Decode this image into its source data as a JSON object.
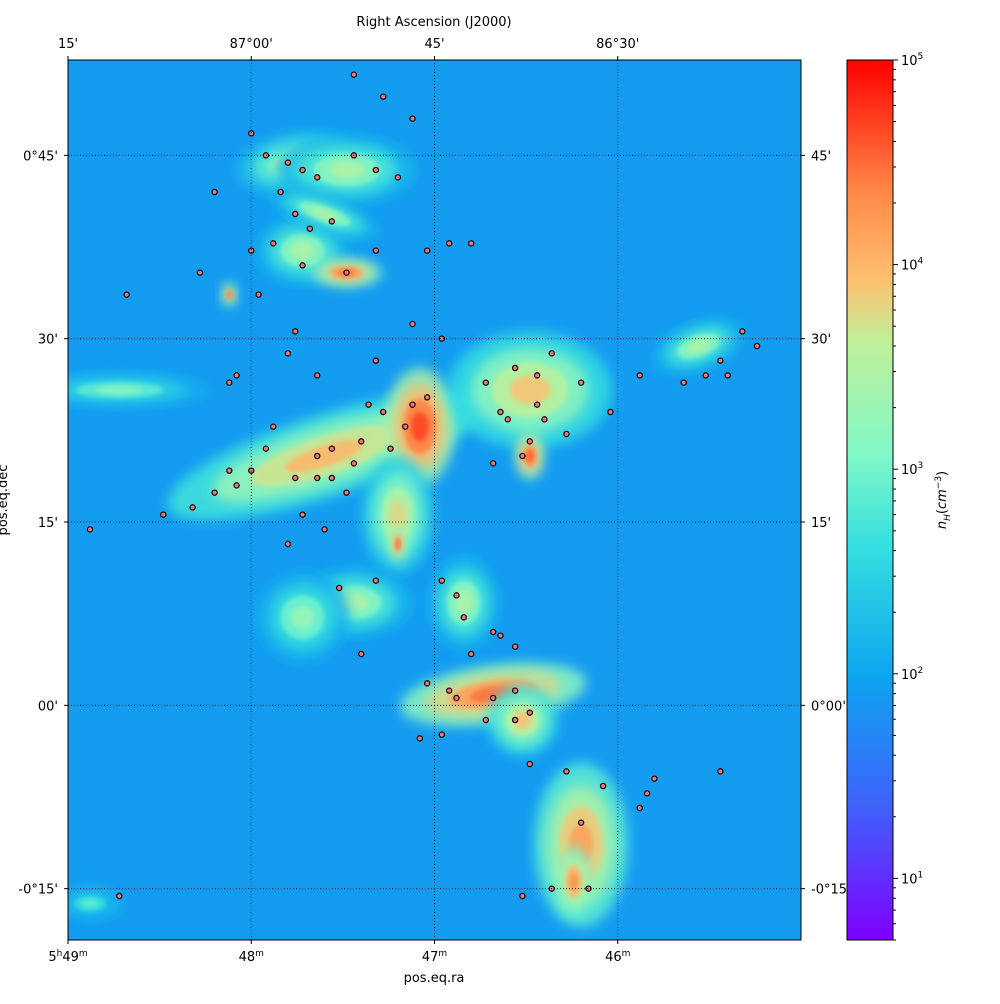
{
  "chart_data": {
    "type": "heatmap",
    "title": "",
    "top_axis_label": "Right Ascension (J2000)",
    "xlabel": "pos.eq.ra",
    "ylabel": "pos.eq.dec",
    "colormap": "rainbow",
    "colorbar": {
      "label": "n_H(cm^-3)",
      "scale": "log",
      "range": [
        5,
        100000
      ],
      "ticks": [
        {
          "value": 10,
          "label_base": "10",
          "label_exp": "1"
        },
        {
          "value": 100,
          "label_base": "10",
          "label_exp": "2"
        },
        {
          "value": 1000,
          "label_base": "10",
          "label_exp": "3"
        },
        {
          "value": 10000,
          "label_base": "10",
          "label_exp": "4"
        },
        {
          "value": 100000,
          "label_base": "10",
          "label_exp": "5"
        }
      ]
    },
    "top_ticks": [
      {
        "value": 87.25,
        "label": "15'"
      },
      {
        "value": 87.0,
        "label": "87°00'"
      },
      {
        "value": 86.75,
        "label": "45'"
      },
      {
        "value": 86.5,
        "label": "86°30'"
      }
    ],
    "bottom_ticks": [
      {
        "value": 87.25,
        "label_main": "5",
        "label_sup1": "h",
        "label_mid": "49",
        "label_sup2": "m"
      },
      {
        "value": 87.0,
        "label_main": "",
        "label_sup1": "",
        "label_mid": "48",
        "label_sup2": "m"
      },
      {
        "value": 86.75,
        "label_main": "",
        "label_sup1": "",
        "label_mid": "47",
        "label_sup2": "m"
      },
      {
        "value": 86.5,
        "label_main": "",
        "label_sup1": "",
        "label_mid": "46",
        "label_sup2": "m"
      }
    ],
    "left_ticks": [
      {
        "value": 0.75,
        "label": "0°45'"
      },
      {
        "value": 0.5,
        "label": "30'"
      },
      {
        "value": 0.25,
        "label": "15'"
      },
      {
        "value": 0.0,
        "label": "00'"
      },
      {
        "value": -0.25,
        "label": "-0°15'"
      }
    ],
    "right_ticks": [
      {
        "value": 0.75,
        "label": "45'"
      },
      {
        "value": 0.5,
        "label": "30'"
      },
      {
        "value": 0.25,
        "label": "15'"
      },
      {
        "value": 0.0,
        "label": "0°00'"
      },
      {
        "value": -0.25,
        "label": "-0°15'"
      }
    ],
    "ra_range": [
      87.25,
      86.25
    ],
    "dec_range": [
      -0.32,
      0.88
    ],
    "grid": "dotted",
    "background_density": 80,
    "density_structures": [
      {
        "ra": 86.94,
        "dec": 0.74,
        "rx": 0.05,
        "ry": 0.025,
        "peak": 4000,
        "angle": -10
      },
      {
        "ra": 86.87,
        "dec": 0.73,
        "rx": 0.06,
        "ry": 0.03,
        "peak": 3000,
        "angle": 0
      },
      {
        "ra": 86.93,
        "dec": 0.62,
        "rx": 0.04,
        "ry": 0.03,
        "peak": 3000,
        "angle": 0
      },
      {
        "ra": 86.87,
        "dec": 0.59,
        "rx": 0.03,
        "ry": 0.012,
        "peak": 30000,
        "angle": 0
      },
      {
        "ra": 86.9,
        "dec": 0.67,
        "rx": 0.05,
        "ry": 0.015,
        "peak": 3000,
        "angle": 20
      },
      {
        "ra": 87.03,
        "dec": 0.56,
        "rx": 0.006,
        "ry": 0.01,
        "peak": 30000,
        "angle": 0
      },
      {
        "ra": 86.9,
        "dec": 0.34,
        "rx": 0.14,
        "ry": 0.035,
        "peak": 10000,
        "angle": -18
      },
      {
        "ra": 86.77,
        "dec": 0.38,
        "rx": 0.03,
        "ry": 0.05,
        "peak": 50000,
        "angle": 0
      },
      {
        "ra": 86.62,
        "dec": 0.43,
        "rx": 0.07,
        "ry": 0.05,
        "peak": 8000,
        "angle": 0
      },
      {
        "ra": 86.62,
        "dec": 0.34,
        "rx": 0.012,
        "ry": 0.02,
        "peak": 40000,
        "angle": 0
      },
      {
        "ra": 86.8,
        "dec": 0.26,
        "rx": 0.03,
        "ry": 0.05,
        "peak": 6000,
        "angle": 0
      },
      {
        "ra": 86.86,
        "dec": 0.14,
        "rx": 0.05,
        "ry": 0.03,
        "peak": 3000,
        "angle": 0
      },
      {
        "ra": 86.93,
        "dec": 0.12,
        "rx": 0.04,
        "ry": 0.04,
        "peak": 2000,
        "angle": 0
      },
      {
        "ra": 86.71,
        "dec": 0.14,
        "rx": 0.03,
        "ry": 0.04,
        "peak": 3000,
        "angle": 0
      },
      {
        "ra": 86.67,
        "dec": 0.015,
        "rx": 0.08,
        "ry": 0.025,
        "peak": 30000,
        "angle": -8
      },
      {
        "ra": 86.63,
        "dec": -0.02,
        "rx": 0.03,
        "ry": 0.03,
        "peak": 8000,
        "angle": 0
      },
      {
        "ra": 86.55,
        "dec": -0.19,
        "rx": 0.04,
        "ry": 0.07,
        "peak": 15000,
        "angle": 0
      },
      {
        "ra": 86.56,
        "dec": -0.24,
        "rx": 0.015,
        "ry": 0.03,
        "peak": 20000,
        "angle": 0
      },
      {
        "ra": 86.39,
        "dec": 0.49,
        "rx": 0.04,
        "ry": 0.02,
        "peak": 3000,
        "angle": -20
      },
      {
        "ra": 87.18,
        "dec": 0.43,
        "rx": 0.08,
        "ry": 0.015,
        "peak": 1500,
        "angle": 0
      },
      {
        "ra": 87.22,
        "dec": -0.27,
        "rx": 0.03,
        "ry": 0.015,
        "peak": 800,
        "angle": 0
      },
      {
        "ra": 86.8,
        "dec": 0.22,
        "rx": 0.006,
        "ry": 0.015,
        "peak": 40000,
        "angle": 0
      }
    ],
    "sources": [
      {
        "ra": 86.86,
        "dec": 0.86
      },
      {
        "ra": 86.82,
        "dec": 0.83
      },
      {
        "ra": 86.78,
        "dec": 0.8
      },
      {
        "ra": 87.0,
        "dec": 0.78
      },
      {
        "ra": 86.98,
        "dec": 0.75
      },
      {
        "ra": 86.95,
        "dec": 0.74
      },
      {
        "ra": 86.93,
        "dec": 0.73
      },
      {
        "ra": 86.91,
        "dec": 0.72
      },
      {
        "ra": 86.86,
        "dec": 0.75
      },
      {
        "ra": 86.83,
        "dec": 0.73
      },
      {
        "ra": 86.8,
        "dec": 0.72
      },
      {
        "ra": 87.05,
        "dec": 0.7
      },
      {
        "ra": 86.96,
        "dec": 0.7
      },
      {
        "ra": 86.94,
        "dec": 0.67
      },
      {
        "ra": 86.92,
        "dec": 0.65
      },
      {
        "ra": 86.89,
        "dec": 0.66
      },
      {
        "ra": 86.97,
        "dec": 0.63
      },
      {
        "ra": 87.0,
        "dec": 0.62
      },
      {
        "ra": 86.93,
        "dec": 0.6
      },
      {
        "ra": 86.87,
        "dec": 0.59
      },
      {
        "ra": 86.83,
        "dec": 0.62
      },
      {
        "ra": 86.76,
        "dec": 0.62
      },
      {
        "ra": 86.73,
        "dec": 0.63
      },
      {
        "ra": 86.7,
        "dec": 0.63
      },
      {
        "ra": 87.07,
        "dec": 0.59
      },
      {
        "ra": 87.17,
        "dec": 0.56
      },
      {
        "ra": 86.99,
        "dec": 0.56
      },
      {
        "ra": 86.94,
        "dec": 0.51
      },
      {
        "ra": 86.78,
        "dec": 0.52
      },
      {
        "ra": 86.74,
        "dec": 0.5
      },
      {
        "ra": 86.83,
        "dec": 0.47
      },
      {
        "ra": 86.95,
        "dec": 0.48
      },
      {
        "ra": 86.91,
        "dec": 0.45
      },
      {
        "ra": 87.02,
        "dec": 0.45
      },
      {
        "ra": 87.03,
        "dec": 0.44
      },
      {
        "ra": 86.68,
        "dec": 0.44
      },
      {
        "ra": 86.64,
        "dec": 0.46
      },
      {
        "ra": 86.61,
        "dec": 0.45
      },
      {
        "ra": 86.59,
        "dec": 0.48
      },
      {
        "ra": 86.55,
        "dec": 0.44
      },
      {
        "ra": 86.61,
        "dec": 0.41
      },
      {
        "ra": 86.66,
        "dec": 0.4
      },
      {
        "ra": 86.65,
        "dec": 0.39
      },
      {
        "ra": 86.6,
        "dec": 0.39
      },
      {
        "ra": 86.57,
        "dec": 0.37
      },
      {
        "ra": 86.62,
        "dec": 0.36
      },
      {
        "ra": 86.63,
        "dec": 0.34
      },
      {
        "ra": 86.67,
        "dec": 0.33
      },
      {
        "ra": 86.51,
        "dec": 0.4
      },
      {
        "ra": 86.47,
        "dec": 0.45
      },
      {
        "ra": 86.41,
        "dec": 0.44
      },
      {
        "ra": 86.38,
        "dec": 0.45
      },
      {
        "ra": 86.35,
        "dec": 0.45
      },
      {
        "ra": 86.33,
        "dec": 0.51
      },
      {
        "ra": 86.31,
        "dec": 0.49
      },
      {
        "ra": 86.36,
        "dec": 0.47
      },
      {
        "ra": 86.76,
        "dec": 0.42
      },
      {
        "ra": 86.78,
        "dec": 0.41
      },
      {
        "ra": 86.82,
        "dec": 0.4
      },
      {
        "ra": 86.84,
        "dec": 0.41
      },
      {
        "ra": 86.79,
        "dec": 0.38
      },
      {
        "ra": 86.81,
        "dec": 0.35
      },
      {
        "ra": 86.85,
        "dec": 0.36
      },
      {
        "ra": 86.86,
        "dec": 0.33
      },
      {
        "ra": 86.89,
        "dec": 0.35
      },
      {
        "ra": 86.91,
        "dec": 0.34
      },
      {
        "ra": 86.97,
        "dec": 0.38
      },
      {
        "ra": 86.98,
        "dec": 0.35
      },
      {
        "ra": 87.0,
        "dec": 0.32
      },
      {
        "ra": 87.03,
        "dec": 0.32
      },
      {
        "ra": 87.05,
        "dec": 0.29
      },
      {
        "ra": 86.94,
        "dec": 0.31
      },
      {
        "ra": 86.91,
        "dec": 0.31
      },
      {
        "ra": 86.89,
        "dec": 0.31
      },
      {
        "ra": 86.87,
        "dec": 0.29
      },
      {
        "ra": 86.93,
        "dec": 0.26
      },
      {
        "ra": 86.95,
        "dec": 0.22
      },
      {
        "ra": 86.9,
        "dec": 0.24
      },
      {
        "ra": 86.88,
        "dec": 0.16
      },
      {
        "ra": 86.83,
        "dec": 0.17
      },
      {
        "ra": 86.74,
        "dec": 0.17
      },
      {
        "ra": 86.72,
        "dec": 0.15
      },
      {
        "ra": 86.71,
        "dec": 0.12
      },
      {
        "ra": 86.67,
        "dec": 0.1
      },
      {
        "ra": 86.66,
        "dec": 0.095
      },
      {
        "ra": 86.64,
        "dec": 0.08
      },
      {
        "ra": 86.7,
        "dec": 0.07
      },
      {
        "ra": 86.76,
        "dec": 0.03
      },
      {
        "ra": 86.73,
        "dec": 0.02
      },
      {
        "ra": 86.72,
        "dec": 0.01
      },
      {
        "ra": 86.67,
        "dec": 0.01
      },
      {
        "ra": 86.64,
        "dec": 0.02
      },
      {
        "ra": 86.62,
        "dec": -0.01
      },
      {
        "ra": 86.64,
        "dec": -0.02
      },
      {
        "ra": 86.68,
        "dec": -0.02
      },
      {
        "ra": 86.74,
        "dec": -0.04
      },
      {
        "ra": 86.77,
        "dec": -0.045
      },
      {
        "ra": 86.62,
        "dec": -0.08
      },
      {
        "ra": 86.57,
        "dec": -0.09
      },
      {
        "ra": 86.52,
        "dec": -0.11
      },
      {
        "ra": 86.55,
        "dec": -0.16
      },
      {
        "ra": 86.54,
        "dec": -0.25
      },
      {
        "ra": 86.47,
        "dec": -0.14
      },
      {
        "ra": 86.46,
        "dec": -0.12
      },
      {
        "ra": 86.45,
        "dec": -0.1
      },
      {
        "ra": 86.36,
        "dec": -0.09
      },
      {
        "ra": 86.63,
        "dec": -0.26
      },
      {
        "ra": 86.59,
        "dec": -0.25
      },
      {
        "ra": 87.18,
        "dec": -0.26
      },
      {
        "ra": 87.22,
        "dec": 0.24
      },
      {
        "ra": 87.12,
        "dec": 0.26
      },
      {
        "ra": 87.08,
        "dec": 0.27
      },
      {
        "ra": 87.02,
        "dec": 0.3
      },
      {
        "ra": 86.85,
        "dec": 0.07
      }
    ]
  }
}
